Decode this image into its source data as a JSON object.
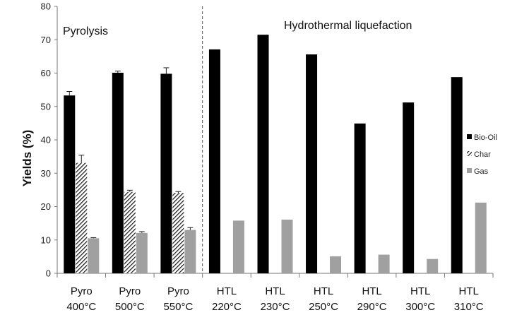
{
  "chart_data": {
    "type": "bar",
    "ylabel": "Yields (%)",
    "ylim": [
      0,
      80
    ],
    "yticks": [
      0,
      10,
      20,
      30,
      40,
      50,
      60,
      70,
      80
    ],
    "categories": [
      [
        "Pyro",
        "400°C"
      ],
      [
        "Pyro",
        "500°C"
      ],
      [
        "Pyro",
        "550°C"
      ],
      [
        "HTL",
        "220°C"
      ],
      [
        "HTL",
        "230°C"
      ],
      [
        "HTL",
        "250°C"
      ],
      [
        "HTL",
        "290°C"
      ],
      [
        "HTL",
        "300°C"
      ],
      [
        "HTL",
        "310°C"
      ]
    ],
    "series": [
      {
        "name": "Bio-Oil",
        "color": "#000000",
        "pattern": "solid",
        "values": [
          53.3,
          60.1,
          59.8,
          67.1,
          71.5,
          65.6,
          44.9,
          51.2,
          58.8
        ],
        "errors": [
          1.2,
          0.5,
          1.8,
          null,
          null,
          null,
          null,
          null,
          null
        ]
      },
      {
        "name": "Char",
        "color": "#3a3a3a",
        "pattern": "hatch",
        "values": [
          33.1,
          24.4,
          24.1,
          null,
          null,
          null,
          null,
          null,
          null
        ],
        "errors": [
          2.3,
          0.5,
          0.4,
          null,
          null,
          null,
          null,
          null,
          null
        ]
      },
      {
        "name": "Gas",
        "color": "#a0a0a0",
        "pattern": "solid",
        "values": [
          10.5,
          12.1,
          13.0,
          15.8,
          16.1,
          5.1,
          5.6,
          4.3,
          21.2
        ],
        "errors": [
          0.2,
          0.4,
          0.7,
          null,
          null,
          null,
          null,
          null,
          null
        ]
      }
    ],
    "annotations": [
      "Pyrolysis",
      "Hydrothermal liquefaction"
    ],
    "separator_after_category": 3,
    "legend_position": "right",
    "grid": false
  }
}
